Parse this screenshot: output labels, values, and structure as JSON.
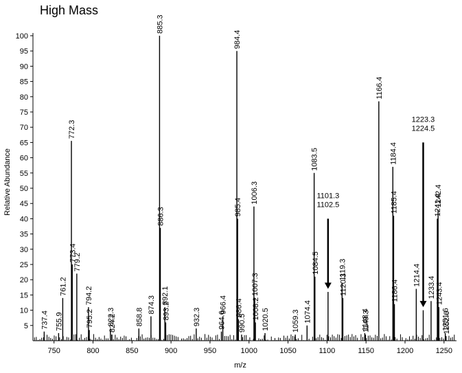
{
  "chart_data": {
    "type": "bar",
    "title": "High Mass",
    "xlabel": "m/z",
    "ylabel": "Relative Abundance",
    "xlim": [
      723,
      1266
    ],
    "ylim": [
      0,
      100
    ],
    "xticks": [
      "750",
      "800",
      "850",
      "900",
      "950",
      "1000",
      "1050",
      "1100",
      "1150",
      "1200",
      "1250"
    ],
    "yticks": [
      "5",
      "10",
      "15",
      "20",
      "25",
      "30",
      "35",
      "40",
      "45",
      "50",
      "55",
      "60",
      "65",
      "70",
      "75",
      "80",
      "85",
      "90",
      "95",
      "100"
    ],
    "peaks": [
      {
        "x": 737.4,
        "y": 3,
        "label": "737.4"
      },
      {
        "x": 755.9,
        "y": 2.5,
        "label": "755.9"
      },
      {
        "x": 761.2,
        "y": 14,
        "label": "761.2"
      },
      {
        "x": 772.3,
        "y": 65.5,
        "label": "772.3"
      },
      {
        "x": 773.4,
        "y": 25,
        "label": "773.4"
      },
      {
        "x": 779.2,
        "y": 22,
        "label": "779.2"
      },
      {
        "x": 794.2,
        "y": 11,
        "label": "794.2"
      },
      {
        "x": 795.2,
        "y": 3.5,
        "label": "795.2"
      },
      {
        "x": 822.3,
        "y": 4,
        "label": "822.3"
      },
      {
        "x": 824.2,
        "y": 2,
        "label": "824.2"
      },
      {
        "x": 858.8,
        "y": 4,
        "label": "858.8"
      },
      {
        "x": 874.3,
        "y": 8,
        "label": "874.3"
      },
      {
        "x": 885.3,
        "y": 100,
        "label": "885.3"
      },
      {
        "x": 886.3,
        "y": 37,
        "label": "886.3"
      },
      {
        "x": 892.1,
        "y": 11,
        "label": "892.1"
      },
      {
        "x": 893.2,
        "y": 6,
        "label": "893.2"
      },
      {
        "x": 932.3,
        "y": 4,
        "label": "932.3"
      },
      {
        "x": 964.6,
        "y": 3,
        "label": "964.6"
      },
      {
        "x": 966.4,
        "y": 8,
        "label": "966.4"
      },
      {
        "x": 984.4,
        "y": 95,
        "label": "984.4"
      },
      {
        "x": 985.4,
        "y": 40,
        "label": "985.4"
      },
      {
        "x": 986.4,
        "y": 7,
        "label": "986.4"
      },
      {
        "x": 990.5,
        "y": 2,
        "label": "990.5"
      },
      {
        "x": 1006.3,
        "y": 44,
        "label": "1006.3"
      },
      {
        "x": 1007.3,
        "y": 14,
        "label": "1007.3"
      },
      {
        "x": 1008.2,
        "y": 6,
        "label": "1008.2"
      },
      {
        "x": 1020.5,
        "y": 2.5,
        "label": "1020.5"
      },
      {
        "x": 1059.3,
        "y": 2,
        "label": "1059.3"
      },
      {
        "x": 1074.4,
        "y": 5,
        "label": "1074.4"
      },
      {
        "x": 1083.5,
        "y": 55,
        "label": "1083.5"
      },
      {
        "x": 1084.5,
        "y": 21,
        "label": "1084.5"
      },
      {
        "x": 1101.3,
        "y": 16,
        "label": "1101.3\n1102.5"
      },
      {
        "x": 1119.3,
        "y": 19,
        "label": "1119.3"
      },
      {
        "x": 1120.3,
        "y": 14,
        "label": "1120.3"
      },
      {
        "x": 1148.4,
        "y": 2.5,
        "label": "1148.4"
      },
      {
        "x": 1149.3,
        "y": 2,
        "label": "1149.3"
      },
      {
        "x": 1166.4,
        "y": 78.5,
        "label": "1166.4"
      },
      {
        "x": 1184.4,
        "y": 57,
        "label": "1184.4"
      },
      {
        "x": 1185.4,
        "y": 41,
        "label": "1185.4"
      },
      {
        "x": 1186.4,
        "y": 12,
        "label": "1186.4"
      },
      {
        "x": 1214.4,
        "y": 17,
        "label": "1214.4"
      },
      {
        "x": 1223.3,
        "y": 10,
        "label": "1223.3\n1224.5"
      },
      {
        "x": 1233.4,
        "y": 13,
        "label": "1233.4"
      },
      {
        "x": 1241.4,
        "y": 40,
        "label": "1241.4"
      },
      {
        "x": 1242.4,
        "y": 43,
        "label": "1242.4"
      },
      {
        "x": 1243.4,
        "y": 11,
        "label": "1243.4"
      },
      {
        "x": 1251.6,
        "y": 2.5,
        "label": "1251.6"
      },
      {
        "x": 1252.6,
        "y": 1.5,
        "label": "1252.6"
      }
    ],
    "arrows": [
      {
        "x": 1101.3,
        "y_from": 40,
        "y_to": 17
      },
      {
        "x": 1223.3,
        "y_from": 65,
        "y_to": 11
      }
    ]
  }
}
